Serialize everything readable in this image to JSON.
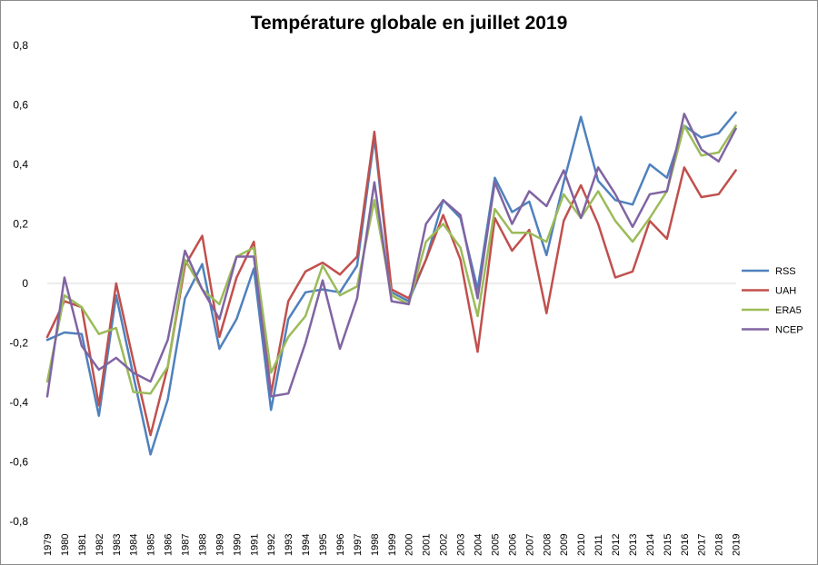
{
  "chart_data": {
    "type": "line",
    "title": "Température globale en juillet 2019",
    "xlabel": "",
    "ylabel": "",
    "ylim": [
      -0.8,
      0.8
    ],
    "ytick_step": 0.2,
    "ytick_labels": [
      "0,8",
      "0,6",
      "0,4",
      "0,2",
      "0",
      "-0,2",
      "-0,4",
      "-0,6",
      "-0,8"
    ],
    "grid": false,
    "legend_position": "right",
    "categories": [
      "1979",
      "1980",
      "1981",
      "1982",
      "1983",
      "1984",
      "1985",
      "1986",
      "1987",
      "1988",
      "1989",
      "1990",
      "1991",
      "1992",
      "1993",
      "1994",
      "1995",
      "1996",
      "1997",
      "1998",
      "1999",
      "2000",
      "2001",
      "2002",
      "2003",
      "2004",
      "2005",
      "2006",
      "2007",
      "2008",
      "2009",
      "2010",
      "2011",
      "2012",
      "2013",
      "2014",
      "2015",
      "2016",
      "2017",
      "2018",
      "2019"
    ],
    "series": [
      {
        "name": "RSS",
        "color": "#4f81bd",
        "values": [
          -0.19,
          -0.165,
          -0.17,
          -0.445,
          -0.04,
          -0.31,
          -0.575,
          -0.39,
          -0.05,
          0.065,
          -0.22,
          -0.12,
          0.05,
          -0.425,
          -0.12,
          -0.03,
          -0.02,
          -0.03,
          0.06,
          0.49,
          -0.03,
          -0.06,
          0.08,
          0.28,
          0.22,
          -0.02,
          0.355,
          0.24,
          0.275,
          0.095,
          0.34,
          0.56,
          0.345,
          0.28,
          0.265,
          0.4,
          0.355,
          0.53,
          0.49,
          0.505,
          0.575
        ]
      },
      {
        "name": "UAH",
        "color": "#c0504d",
        "values": [
          -0.18,
          -0.06,
          -0.08,
          -0.41,
          0.0,
          -0.26,
          -0.51,
          -0.28,
          0.06,
          0.16,
          -0.18,
          0.02,
          0.14,
          -0.37,
          -0.06,
          0.04,
          0.07,
          0.03,
          0.09,
          0.51,
          -0.02,
          -0.05,
          0.08,
          0.23,
          0.08,
          -0.23,
          0.22,
          0.11,
          0.18,
          -0.1,
          0.21,
          0.33,
          0.2,
          0.02,
          0.04,
          0.21,
          0.15,
          0.39,
          0.29,
          0.3,
          0.38
        ]
      },
      {
        "name": "ERA5",
        "color": "#9bbb59",
        "values": [
          -0.33,
          -0.04,
          -0.08,
          -0.17,
          -0.15,
          -0.365,
          -0.37,
          -0.28,
          0.08,
          -0.02,
          -0.07,
          0.09,
          0.12,
          -0.3,
          -0.18,
          -0.11,
          0.06,
          -0.04,
          -0.01,
          0.28,
          -0.04,
          -0.07,
          0.14,
          0.2,
          0.12,
          -0.11,
          0.25,
          0.17,
          0.17,
          0.14,
          0.3,
          0.22,
          0.31,
          0.21,
          0.14,
          0.22,
          0.31,
          0.53,
          0.43,
          0.44,
          0.53
        ]
      },
      {
        "name": "NCEP",
        "color": "#8064a2",
        "values": [
          -0.38,
          0.02,
          -0.21,
          -0.29,
          -0.25,
          -0.3,
          -0.33,
          -0.19,
          0.11,
          -0.02,
          -0.12,
          0.09,
          0.09,
          -0.38,
          -0.37,
          -0.2,
          0.01,
          -0.22,
          -0.05,
          0.34,
          -0.06,
          -0.07,
          0.2,
          0.28,
          0.23,
          -0.05,
          0.34,
          0.2,
          0.31,
          0.26,
          0.38,
          0.22,
          0.39,
          0.3,
          0.19,
          0.3,
          0.31,
          0.57,
          0.45,
          0.41,
          0.52
        ]
      }
    ]
  }
}
